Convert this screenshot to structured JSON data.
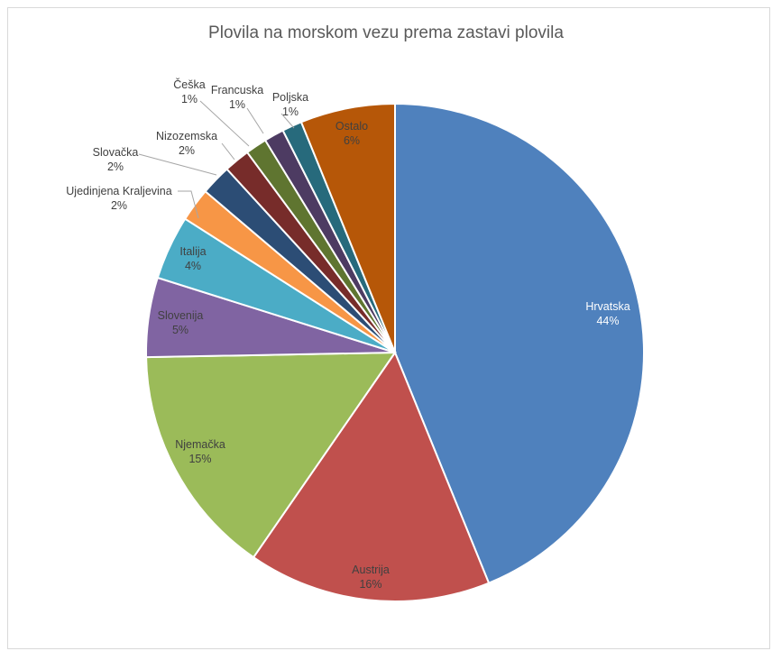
{
  "chart_data": {
    "type": "pie",
    "title": "Plovila na morskom vezu prema zastavi plovila",
    "slices": [
      {
        "label": "Hrvatska",
        "pct_label": "44%",
        "value": 44.2,
        "color": "#4f81bd"
      },
      {
        "label": "Austrija",
        "pct_label": "16%",
        "value": 15.9,
        "color": "#c0504d"
      },
      {
        "label": "Njemačka",
        "pct_label": "15%",
        "value": 15.2,
        "color": "#9bbb59"
      },
      {
        "label": "Slovenija",
        "pct_label": "5%",
        "value": 5.2,
        "color": "#8064a2"
      },
      {
        "label": "Italija",
        "pct_label": "4%",
        "value": 4.2,
        "color": "#4bacc6"
      },
      {
        "label": "Ujedinjena Kraljevina",
        "pct_label": "2%",
        "value": 2.2,
        "color": "#f79646"
      },
      {
        "label": "Slovačka",
        "pct_label": "2%",
        "value": 2.0,
        "color": "#2c4d75"
      },
      {
        "label": "Nizozemska",
        "pct_label": "2%",
        "value": 1.7,
        "color": "#772c2a"
      },
      {
        "label": "Češka",
        "pct_label": "1%",
        "value": 1.4,
        "color": "#5f7530"
      },
      {
        "label": "Francuska",
        "pct_label": "1%",
        "value": 1.3,
        "color": "#4d3b62"
      },
      {
        "label": "Poljska",
        "pct_label": "1%",
        "value": 1.3,
        "color": "#276a7c"
      },
      {
        "label": "Ostalo",
        "pct_label": "6%",
        "value": 6.2,
        "color": "#b65708"
      }
    ],
    "start_angle": "12 o'clock",
    "direction": "clockwise",
    "legend": "none",
    "data_labels": "category name and percentage"
  }
}
